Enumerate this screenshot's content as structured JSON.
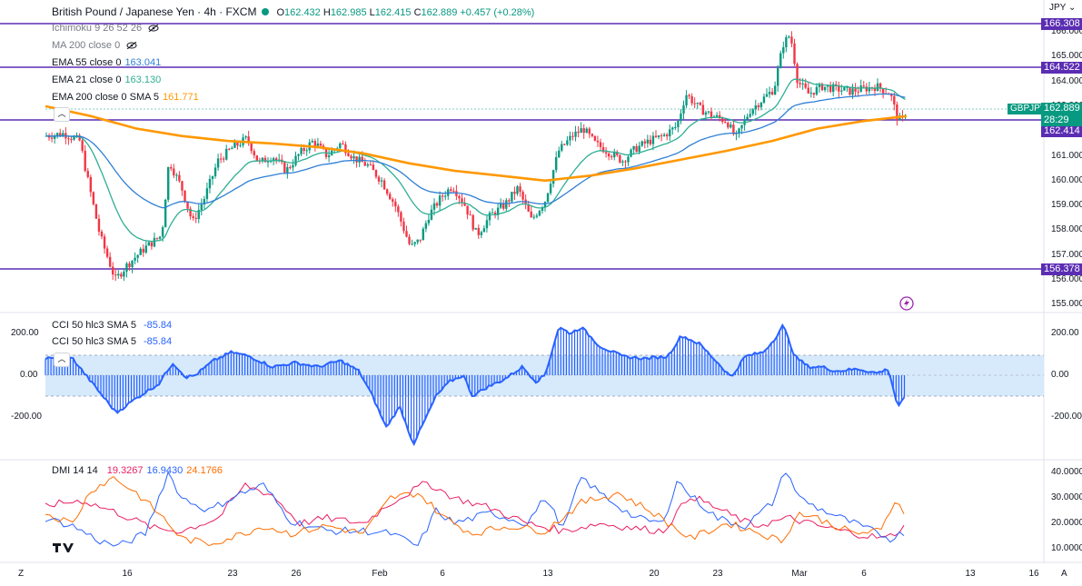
{
  "header": {
    "symbol": "British Pound / Japanese Yen · 4h · FXCM",
    "open_label": "O",
    "open": "162.432",
    "high_label": "H",
    "high": "162.985",
    "low_label": "L",
    "low": "162.415",
    "close_label": "C",
    "close": "162.889",
    "change": "+0.457 (+0.28%)",
    "currency": "JPY"
  },
  "indicators": {
    "ichimoku": "Ichimoku 9 26 52 26",
    "ma200": "MA 200 close 0",
    "ema55": {
      "label": "EMA 55 close 0",
      "value": "163.041"
    },
    "ema21": {
      "label": "EMA 21 close 0",
      "value": "163.130"
    },
    "ema200": {
      "label": "EMA 200 close 0 SMA 5",
      "value": "161.771"
    },
    "cci_a": {
      "label": "CCI 50 hlc3 SMA 5",
      "value": "-85.84"
    },
    "cci_b": {
      "label": "CCI 50 hlc3 SMA 5",
      "value": "-85.84"
    },
    "dmi": {
      "label": "DMI 14 14",
      "v1": "19.3267",
      "v2": "16.9430",
      "v3": "24.1766"
    }
  },
  "price_axis": [
    "166.000",
    "165.000",
    "164.000",
    "163.000",
    "162.000",
    "161.000",
    "160.000",
    "159.000",
    "158.000",
    "157.000",
    "156.000",
    "155.000"
  ],
  "levels": {
    "h1": "166.308",
    "h2": "164.522",
    "h3": "162.414",
    "h4": "156.378"
  },
  "current_price": {
    "symbol": "GBPJPY",
    "price": "162.889",
    "countdown": "28:29"
  },
  "cci_axis": [
    "200.00",
    "0.00",
    "-200.00"
  ],
  "dmi_axis": [
    "40.0000",
    "30.0000",
    "20.0000",
    "10.0000"
  ],
  "time_axis": [
    "16",
    "23",
    "26",
    "Feb",
    "6",
    "13",
    "20",
    "23",
    "Mar",
    "6",
    "13",
    "16"
  ],
  "colors": {
    "accent": "#7e57c2",
    "bull": "#089981",
    "bear": "#f23645",
    "ema21": "#2fae94",
    "ema55": "#2f7fd6",
    "ema200": "#ff9800",
    "cci": "#2962ff",
    "dmi_plus": "#2962ff",
    "dmi_minus": "#e91e63",
    "adx": "#ff6d00"
  },
  "footer": {
    "left": "Z",
    "right": "A"
  }
}
